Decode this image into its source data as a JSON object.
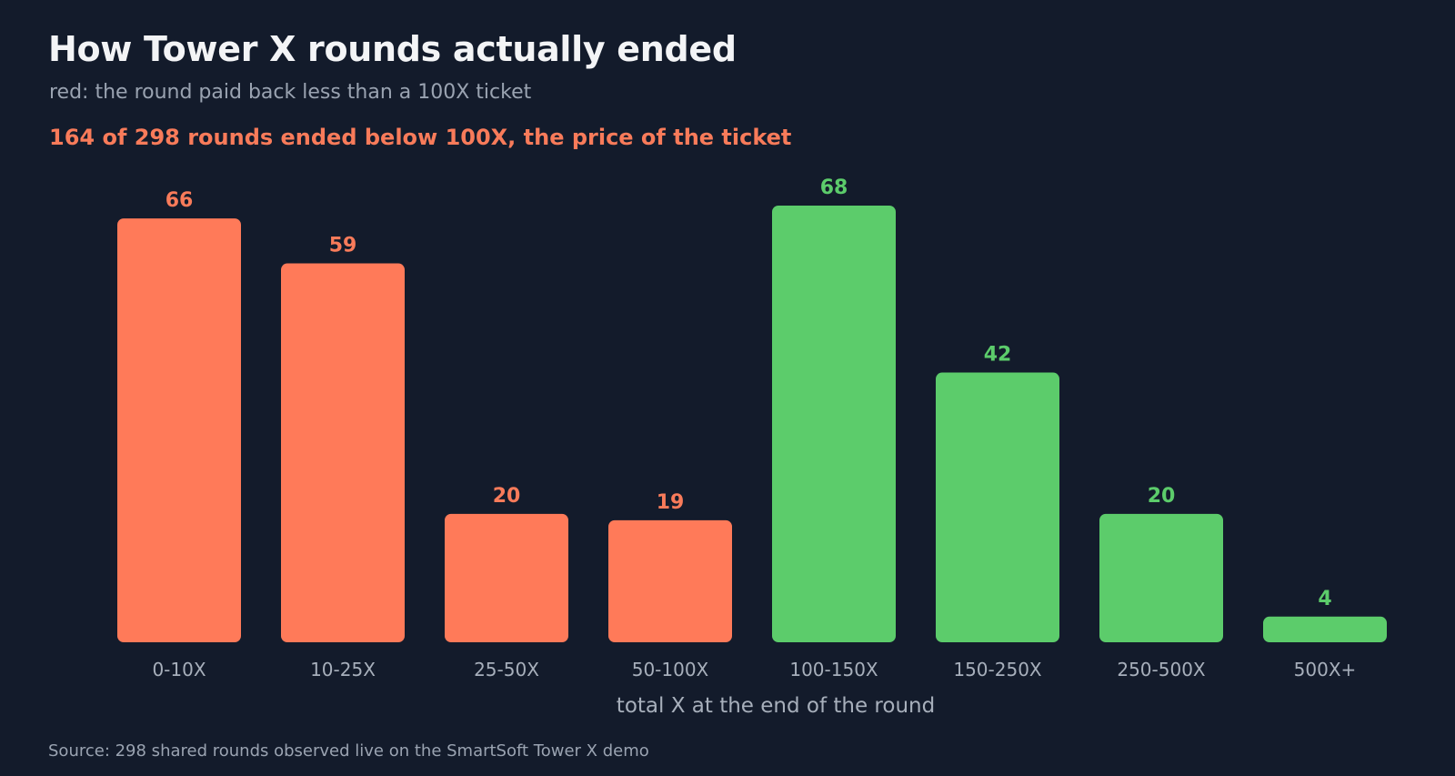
{
  "header": {
    "title": "How Tower X rounds actually ended",
    "subtitle": "red: the round paid back less than a 100X ticket",
    "annotation": "164 of 298 rounds ended below 100X, the price of the ticket"
  },
  "footer": {
    "source": "Source: 298 shared rounds observed live on the SmartSoft Tower X demo"
  },
  "colors": {
    "below": "#ff7a59",
    "above": "#5ccc6b",
    "below_label": "#f87b5a",
    "above_label": "#5ccc6b",
    "background": "#131b2b"
  },
  "chart_data": {
    "type": "bar",
    "title": "How Tower X rounds actually ended",
    "subtitle": "red: the round paid back less than a 100X ticket",
    "xlabel": "total X at the end of the round",
    "ylabel": "",
    "categories": [
      "0-10X",
      "10-25X",
      "25-50X",
      "50-100X",
      "100-150X",
      "150-250X",
      "250-500X",
      "500X+"
    ],
    "values": [
      66,
      59,
      20,
      19,
      68,
      42,
      20,
      4
    ],
    "groups": [
      "below",
      "below",
      "below",
      "below",
      "above",
      "above",
      "above",
      "above"
    ],
    "ylim": [
      0,
      68
    ],
    "grid": false,
    "legend": "none"
  }
}
